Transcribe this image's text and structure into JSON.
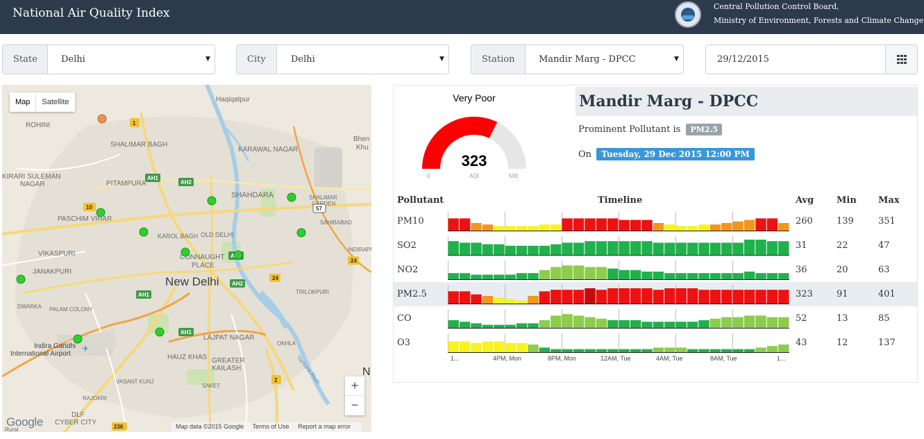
{
  "header": {
    "title": "National Air Quality Index",
    "org_line1": "Central Pollution Control Board,",
    "org_line2": "Ministry of Environment, Forests and Climate Change"
  },
  "filters": {
    "state_label": "State",
    "state_value": "Delhi",
    "city_label": "City",
    "city_value": "Delhi",
    "station_label": "Station",
    "station_value": "Mandir Marg - DPCC",
    "date_value": "29/12/2015"
  },
  "map": {
    "type_map": "Map",
    "type_satellite": "Satellite",
    "zoom_in": "+",
    "zoom_out": "−",
    "google": "Google",
    "footer": [
      "Map data ©2015 Google",
      "Terms of Use",
      "Report a map error"
    ],
    "labels": {
      "rohini": "ROHINI",
      "haqiqatpur": "Haqiqatpur",
      "bhen": "Bhen",
      "khu": "Khu",
      "shalimar_bagh": "SHALIMAR BAGH",
      "karawal_nagar": "KARAWAL NAGAR",
      "kirari1": "KIRARI SULEMAN",
      "kirari2": "NAGAR",
      "pitampura": "PITAMPURA",
      "shahdara": "SHAHDARA",
      "shalimar1": "SHALIMAR",
      "shalimar2": "GARDEN",
      "paschim_vihar": "PASCHIM VIHAR",
      "sahibabad": "SAHIBABAD",
      "karol_bagh": "KAROL BAGH",
      "old_delhi": "OLD DELHI",
      "indirapuri": "INDIRAPURI",
      "vikaspuri": "VIKASPURI",
      "connaught1": "CONNAUGHT",
      "connaught2": "PLACE",
      "janakpuri": "JANAKPURI",
      "new_delhi": "New Delhi",
      "trilokpuri": "TRILOKPURI",
      "dwarka": "DWARKA",
      "palam_colony": "PALAM COLONY",
      "lajpat_nagar": "LAJPAT NAGAR",
      "okhla": "OKHLA",
      "airport1": "Indira Gandhi",
      "airport2": "International Airport",
      "hauz_khas": "HAUZ KHAS",
      "greater1": "GREATER",
      "greater2": "KAILASH",
      "yamuna": "Yamuna River",
      "vasant_kunj": "VASANT KUNJ",
      "saket": "SAKET",
      "rajokri": "RAJOKRI",
      "dlf1": "DLF",
      "dlf2": "CYBER CITY",
      "n": "N",
      "rural": "Rural"
    },
    "shields": {
      "s1": "1",
      "s10": "10",
      "ah1a": "AH1",
      "ah2a": "AH2",
      "s57": "57",
      "ah1b": "AH1",
      "ah2b": "AH2",
      "s24a": "24",
      "s24b": "24",
      "ah1c": "AH1",
      "ah1d": "AH1",
      "s2": "2",
      "s236": "236"
    }
  },
  "aqi": {
    "category": "Very Poor",
    "value": "323",
    "value_num": 323,
    "min": "0",
    "max": "500",
    "max_num": 500,
    "unit": "AQI",
    "colors": {
      "fill": "#ff0000",
      "track": "#e6e6e6"
    }
  },
  "station": {
    "name": "Mandir Marg - DPCC",
    "prominent_text": "Prominent Pollutant is",
    "prominent": "PM2.5",
    "on_text": "On",
    "datetime": "Tuesday, 29 Dec 2015 12:00 PM"
  },
  "table": {
    "headers": {
      "pollutant": "Pollutant",
      "timeline": "Timeline",
      "avg": "Avg",
      "min": "Min",
      "max": "Max"
    },
    "tick_labels": [
      "1...",
      "4PM, Mon",
      "8PM, Mon",
      "12AM, Tue",
      "4AM, Tue",
      "8AM, Tue",
      "1..."
    ],
    "rows": [
      {
        "name": "PM10",
        "avg": "260",
        "min": "139",
        "max": "351",
        "bars": [
          8,
          8,
          5,
          4,
          3,
          3,
          3,
          3,
          4,
          4,
          8,
          8,
          8,
          8,
          8,
          7,
          7,
          7,
          5,
          4,
          3,
          3,
          4,
          4,
          5,
          6,
          7,
          8,
          8,
          5
        ],
        "colors": [
          "r",
          "r",
          "o",
          "o",
          "y",
          "y",
          "y",
          "y",
          "y",
          "y",
          "r",
          "r",
          "r",
          "r",
          "r",
          "r",
          "r",
          "r",
          "o",
          "y",
          "y",
          "y",
          "y",
          "o",
          "o",
          "o",
          "o",
          "r",
          "r",
          "o"
        ]
      },
      {
        "name": "SO2",
        "avg": "31",
        "min": "22",
        "max": "47",
        "bars": [
          9,
          8,
          8,
          7,
          7,
          6,
          6,
          6,
          6,
          7,
          8,
          8,
          9,
          9,
          9,
          9,
          9,
          9,
          8,
          8,
          8,
          8,
          8,
          8,
          8,
          8,
          10,
          10,
          9,
          9
        ],
        "colors": [
          "g",
          "g",
          "g",
          "g",
          "g",
          "g",
          "g",
          "g",
          "g",
          "g",
          "g",
          "g",
          "g",
          "g",
          "g",
          "g",
          "g",
          "g",
          "g",
          "g",
          "g",
          "g",
          "g",
          "g",
          "g",
          "g",
          "g",
          "g",
          "g",
          "g"
        ]
      },
      {
        "name": "NO2",
        "avg": "36",
        "min": "20",
        "max": "63",
        "bars": [
          4,
          4,
          3,
          3,
          3,
          3,
          4,
          4,
          6,
          8,
          9,
          9,
          8,
          8,
          7,
          6,
          6,
          5,
          5,
          4,
          4,
          4,
          4,
          4,
          4,
          4,
          5,
          4,
          4,
          4
        ],
        "colors": [
          "g",
          "g",
          "g",
          "g",
          "g",
          "g",
          "g",
          "g",
          "l",
          "l",
          "l",
          "l",
          "l",
          "l",
          "g",
          "g",
          "g",
          "g",
          "g",
          "g",
          "g",
          "g",
          "g",
          "g",
          "g",
          "g",
          "g",
          "g",
          "g",
          "g"
        ]
      },
      {
        "name": "PM2.5",
        "avg": "323",
        "min": "91",
        "max": "401",
        "bars": [
          8,
          8,
          6,
          5,
          4,
          3,
          2,
          5,
          8,
          9,
          9,
          9,
          10,
          9,
          10,
          10,
          10,
          10,
          9,
          10,
          10,
          10,
          9,
          9,
          9,
          9,
          9,
          9,
          9,
          9
        ],
        "colors": [
          "r",
          "r",
          "r",
          "o",
          "y",
          "y",
          "y",
          "o",
          "r",
          "r",
          "r",
          "r",
          "d",
          "r",
          "r",
          "r",
          "r",
          "r",
          "r",
          "r",
          "r",
          "r",
          "r",
          "r",
          "r",
          "r",
          "r",
          "r",
          "r",
          "r"
        ]
      },
      {
        "name": "CO",
        "avg": "52",
        "min": "13",
        "max": "85",
        "bars": [
          5,
          4,
          3,
          2,
          2,
          2,
          3,
          3,
          5,
          8,
          9,
          8,
          7,
          6,
          5,
          5,
          5,
          4,
          4,
          4,
          4,
          4,
          5,
          6,
          7,
          7,
          8,
          8,
          7,
          7
        ],
        "colors": [
          "g",
          "g",
          "g",
          "g",
          "g",
          "g",
          "g",
          "g",
          "l",
          "l",
          "l",
          "l",
          "l",
          "l",
          "g",
          "g",
          "g",
          "g",
          "g",
          "g",
          "g",
          "g",
          "g",
          "l",
          "l",
          "l",
          "l",
          "l",
          "l",
          "l"
        ]
      },
      {
        "name": "O3",
        "avg": "43",
        "min": "12",
        "max": "137",
        "bars": [
          7,
          7,
          6,
          7,
          7,
          6,
          6,
          5,
          3,
          2,
          2,
          2,
          2,
          2,
          2,
          2,
          2,
          2,
          3,
          3,
          3,
          2,
          2,
          2,
          2,
          2,
          2,
          3,
          4,
          5
        ],
        "colors": [
          "y",
          "y",
          "y",
          "y",
          "y",
          "y",
          "y",
          "l",
          "g",
          "g",
          "g",
          "g",
          "g",
          "g",
          "g",
          "g",
          "g",
          "g",
          "l",
          "l",
          "l",
          "g",
          "g",
          "g",
          "g",
          "g",
          "g",
          "l",
          "l",
          "l"
        ]
      }
    ],
    "palette": {
      "r": "#ee1111",
      "d": "#c40a0a",
      "o": "#f2961d",
      "y": "#f8f21f",
      "g": "#20b14c",
      "l": "#8dcc4c"
    }
  }
}
